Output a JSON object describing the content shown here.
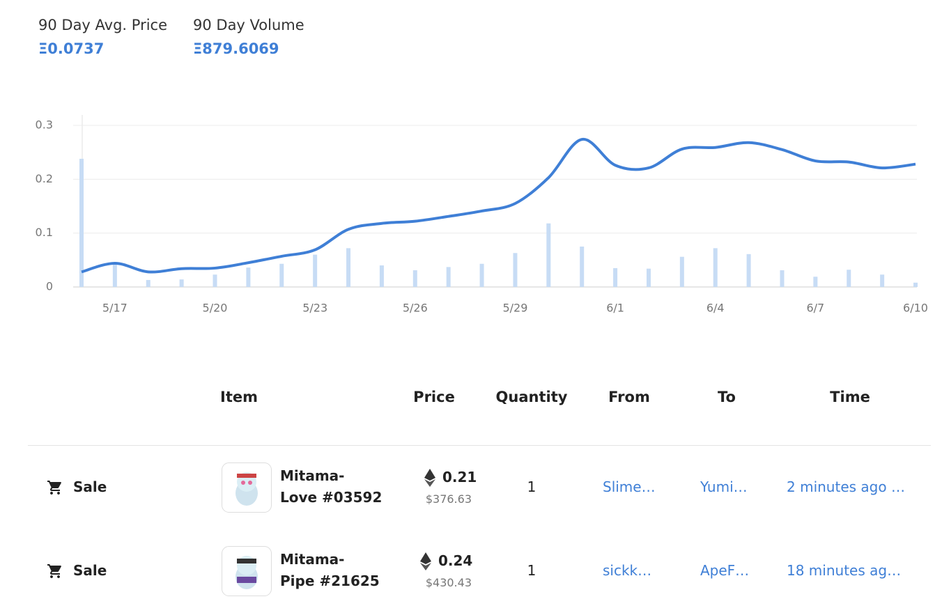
{
  "stats": [
    {
      "label": "90 Day Avg. Price",
      "value": "Ξ0.0737"
    },
    {
      "label": "90 Day Volume",
      "value": "Ξ879.6069"
    }
  ],
  "chart_data": {
    "type": "combo",
    "categories": [
      null,
      "5/17",
      null,
      null,
      "5/20",
      null,
      null,
      "5/23",
      null,
      null,
      "5/26",
      null,
      null,
      "5/29",
      null,
      null,
      "6/1",
      null,
      null,
      "6/4",
      null,
      null,
      "6/7",
      null,
      null,
      "6/10"
    ],
    "series": [
      {
        "type": "bar",
        "color": "#c7dcf5",
        "values": [
          0.238,
          0.044,
          0.013,
          0.014,
          0.023,
          0.036,
          0.043,
          0.06,
          0.072,
          0.04,
          0.031,
          0.037,
          0.043,
          0.063,
          0.118,
          0.075,
          0.035,
          0.034,
          0.056,
          0.072,
          0.061,
          0.031,
          0.019,
          0.032,
          0.023,
          0.008
        ]
      },
      {
        "type": "line",
        "color": "#3f7fd6",
        "values": [
          0.028,
          0.044,
          0.028,
          0.034,
          0.035,
          0.045,
          0.057,
          0.069,
          0.107,
          0.118,
          0.122,
          0.131,
          0.141,
          0.155,
          0.203,
          0.274,
          0.226,
          0.221,
          0.256,
          0.259,
          0.268,
          0.255,
          0.234,
          0.232,
          0.221,
          0.228
        ]
      }
    ],
    "ylim": [
      0,
      0.3
    ],
    "yticks": [
      0,
      0.1,
      0.2,
      0.3
    ],
    "grid": true
  },
  "table": {
    "headers": [
      "Item",
      "Price",
      "Quantity",
      "From",
      "To",
      "Time"
    ],
    "rows": [
      {
        "event": "Sale",
        "item_lines": [
          "Mitama-",
          "Love #03592"
        ],
        "price": "0.21",
        "price_usd": "$376.63",
        "quantity": "1",
        "from": "Slime…",
        "to": "Yumi…",
        "time": "2 minutes ago …"
      },
      {
        "event": "Sale",
        "item_lines": [
          "Mitama-",
          "Pipe #21625"
        ],
        "price": "0.24",
        "price_usd": "$430.43",
        "quantity": "1",
        "from": "sickk…",
        "to": "ApeF…",
        "time": "18 minutes ag…"
      }
    ]
  }
}
